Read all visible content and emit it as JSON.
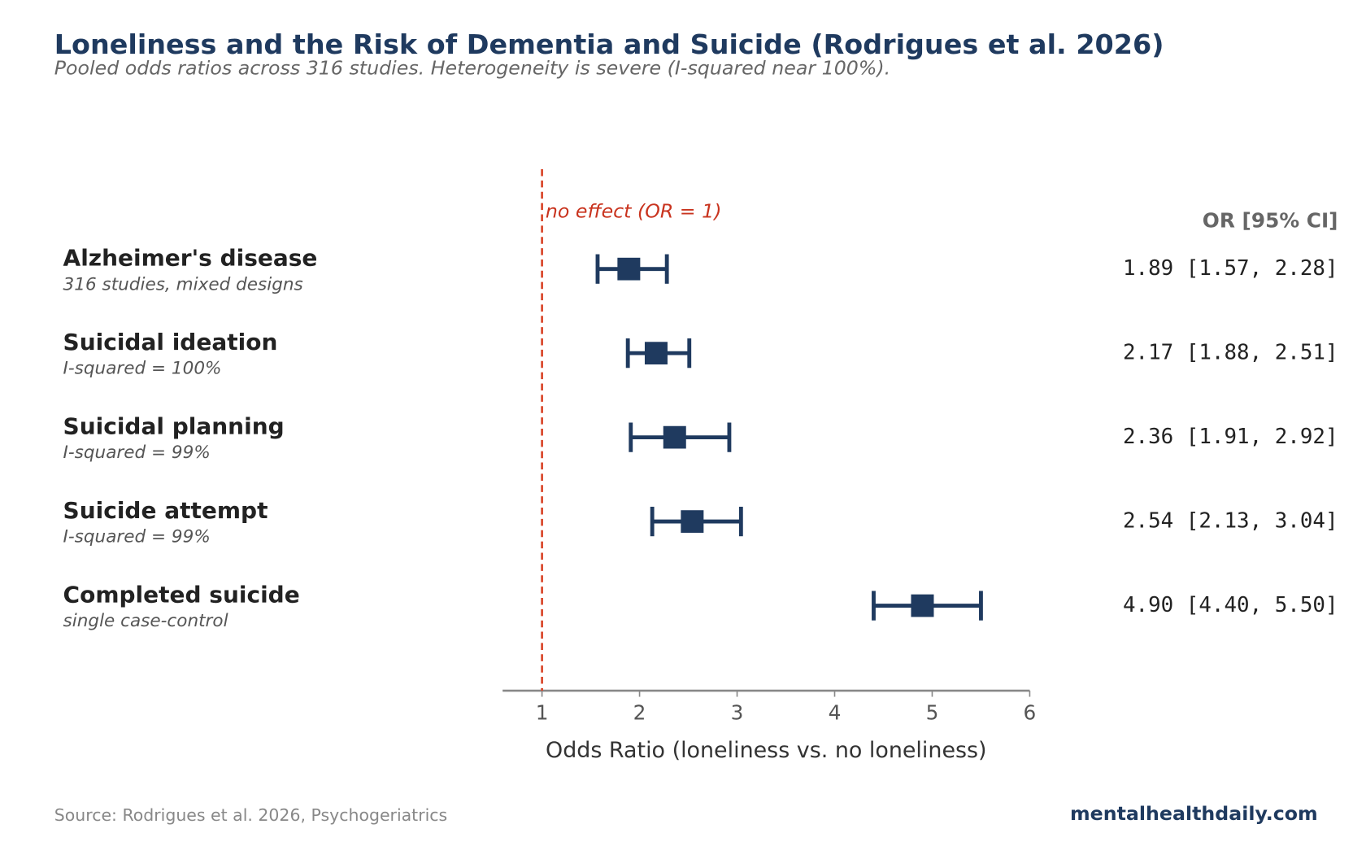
{
  "title": "Loneliness and the Risk of Dementia and Suicide (Rodrigues et al. 2026)",
  "subtitle": "Pooled odds ratios across 316 studies. Heterogeneity is severe (I-squared near 100%).",
  "source": "Source: Rodrigues et al. 2026, Psychogeriatrics",
  "brand": "mentalhealthdaily.com",
  "colors": {
    "marker": "#1f3a5f",
    "reference": "#d9472b",
    "axis": "#888888"
  },
  "chart_data": {
    "type": "forest",
    "xlabel": "Odds Ratio (loneliness vs. no loneliness)",
    "xlim": [
      0.6,
      6
    ],
    "xticks": [
      "1",
      "2",
      "3",
      "4",
      "5",
      "6"
    ],
    "reference": {
      "x": 1,
      "label": "no effect (OR = 1)"
    },
    "value_header": "OR [95% CI]",
    "rows": [
      {
        "label": "Alzheimer's disease",
        "note": "316 studies, mixed designs",
        "or": 1.89,
        "lo": 1.57,
        "hi": 2.28,
        "text": "1.89 [1.57, 2.28]"
      },
      {
        "label": "Suicidal ideation",
        "note": "I-squared = 100%",
        "or": 2.17,
        "lo": 1.88,
        "hi": 2.51,
        "text": "2.17 [1.88, 2.51]"
      },
      {
        "label": "Suicidal planning",
        "note": "I-squared = 99%",
        "or": 2.36,
        "lo": 1.91,
        "hi": 2.92,
        "text": "2.36 [1.91, 2.92]"
      },
      {
        "label": "Suicide attempt",
        "note": "I-squared = 99%",
        "or": 2.54,
        "lo": 2.13,
        "hi": 3.04,
        "text": "2.54 [2.13, 3.04]"
      },
      {
        "label": "Completed suicide",
        "note": "single case-control",
        "or": 4.9,
        "lo": 4.4,
        "hi": 5.5,
        "text": "4.90 [4.40, 5.50]"
      }
    ]
  }
}
